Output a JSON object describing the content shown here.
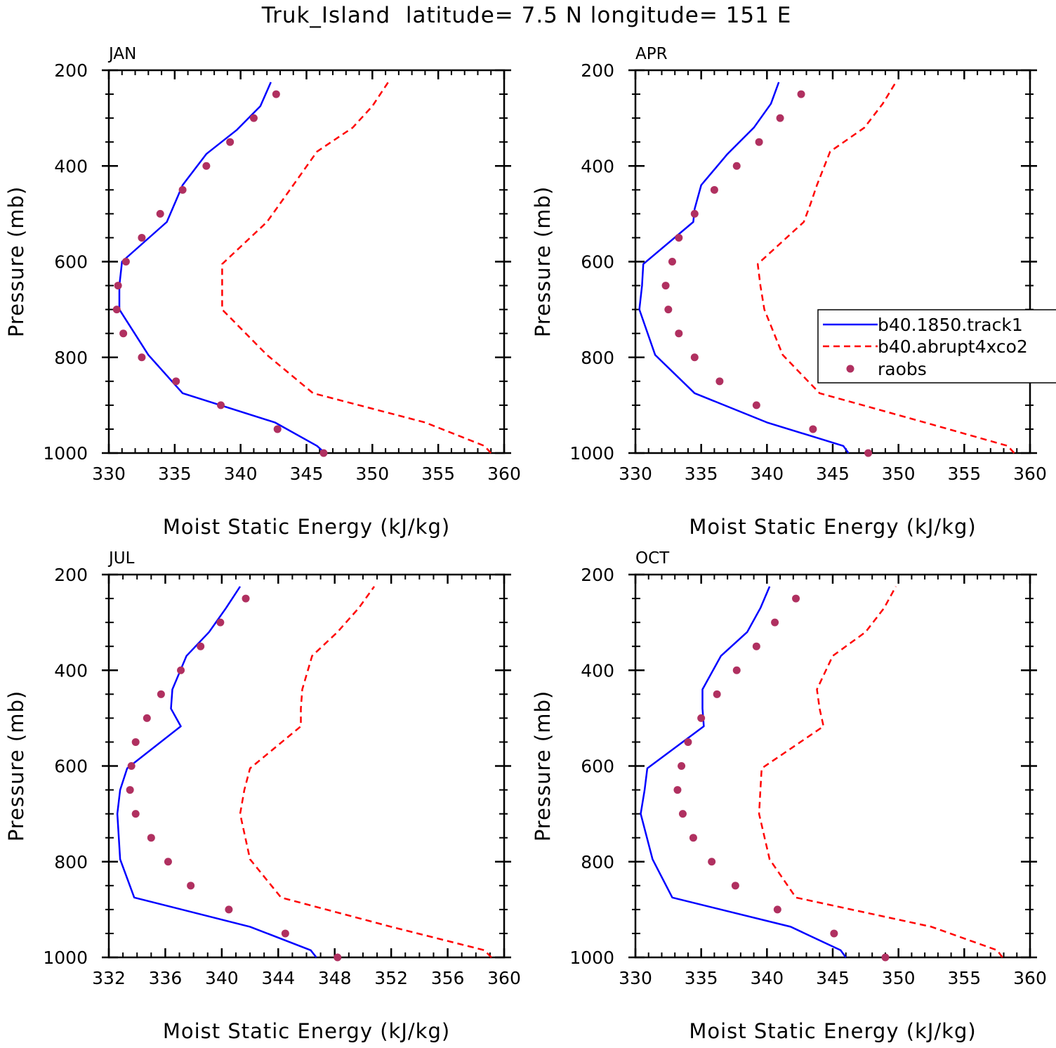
{
  "title": "Truk_Island  latitude= 7.5 N longitude= 151 E",
  "colors": {
    "model_1850": "#0000ff",
    "model_4xco2": "#ff0000",
    "raobs": "#b03060",
    "axis": "#000000"
  },
  "legend": {
    "items": [
      {
        "label": "b40.1850.track1",
        "style": "solid-line"
      },
      {
        "label": "b40.abrupt4xco2",
        "style": "dashed-line"
      },
      {
        "label": "raobs",
        "style": "dot"
      }
    ]
  },
  "chart_data": [
    {
      "type": "line",
      "title": "JAN",
      "xlabel": "Moist Static Energy (kJ/kg)",
      "ylabel": "Pressure (mb)",
      "xlim": [
        330,
        360
      ],
      "ylim": [
        1000,
        200
      ],
      "xticks": [
        330,
        335,
        340,
        345,
        350,
        355,
        360
      ],
      "yticks": [
        200,
        400,
        600,
        800,
        1000
      ],
      "series": [
        {
          "name": "b40.1850.track1",
          "style": "solid",
          "x": [
            346.4,
            345.8,
            342.6,
            335.6,
            333.0,
            330.8,
            330.8,
            331.0,
            334.4,
            335.6,
            337.4,
            339.7,
            341.5,
            342.3
          ],
          "y": [
            1000,
            985,
            936,
            875,
            795,
            700,
            650,
            600,
            517,
            440,
            375,
            325,
            275,
            225
          ]
        },
        {
          "name": "b40.abrupt4xco2",
          "style": "dashed",
          "x": [
            359.0,
            358.5,
            354.0,
            345.5,
            342.0,
            338.6,
            338.6,
            338.6,
            342.0,
            344.0,
            345.8,
            348.5,
            350.0,
            351.2
          ],
          "y": [
            1000,
            985,
            936,
            875,
            795,
            700,
            650,
            605,
            517,
            440,
            370,
            320,
            275,
            225
          ]
        },
        {
          "name": "raobs",
          "style": "dots",
          "x": [
            346.3,
            342.8,
            338.5,
            335.1,
            332.5,
            331.1,
            330.6,
            330.7,
            331.3,
            332.5,
            333.9,
            335.6,
            337.4,
            339.2,
            341.0,
            342.7
          ],
          "y": [
            1000,
            950,
            900,
            850,
            800,
            750,
            700,
            650,
            600,
            550,
            500,
            450,
            400,
            350,
            300,
            250
          ]
        }
      ]
    },
    {
      "type": "line",
      "title": "APR",
      "xlabel": "Moist Static Energy (kJ/kg)",
      "ylabel": "Pressure (mb)",
      "xlim": [
        330,
        360
      ],
      "ylim": [
        1000,
        200
      ],
      "xticks": [
        330,
        335,
        340,
        345,
        350,
        355,
        360
      ],
      "yticks": [
        200,
        400,
        600,
        800,
        1000
      ],
      "series": [
        {
          "name": "b40.1850.track1",
          "style": "solid",
          "x": [
            346.2,
            345.8,
            340.0,
            334.5,
            331.5,
            330.3,
            330.5,
            330.6,
            334.4,
            334.5,
            335.0,
            337.0,
            339.0,
            340.3,
            340.9
          ],
          "y": [
            1000,
            985,
            936,
            875,
            795,
            700,
            650,
            605,
            517,
            490,
            440,
            375,
            320,
            270,
            225
          ]
        },
        {
          "name": "b40.abrupt4xco2",
          "style": "dashed",
          "x": [
            358.8,
            358.3,
            352.0,
            344.0,
            341.2,
            339.8,
            339.5,
            339.3,
            342.8,
            343.3,
            343.8,
            344.8,
            347.4,
            348.8,
            349.8
          ],
          "y": [
            1000,
            985,
            936,
            875,
            795,
            700,
            650,
            605,
            517,
            480,
            440,
            370,
            320,
            270,
            225
          ]
        },
        {
          "name": "raobs",
          "style": "dots",
          "x": [
            347.7,
            343.5,
            339.2,
            336.4,
            334.5,
            333.3,
            332.5,
            332.3,
            332.8,
            333.3,
            334.5,
            336.0,
            337.7,
            339.4,
            341.0,
            342.6
          ],
          "y": [
            1000,
            950,
            900,
            850,
            800,
            750,
            700,
            650,
            600,
            550,
            500,
            450,
            400,
            350,
            300,
            250
          ]
        }
      ]
    },
    {
      "type": "line",
      "title": "JUL",
      "xlabel": "Moist Static Energy (kJ/kg)",
      "ylabel": "Pressure (mb)",
      "xlim": [
        332,
        360
      ],
      "ylim": [
        1000,
        200
      ],
      "xticks": [
        332,
        336,
        340,
        344,
        348,
        352,
        356,
        360
      ],
      "yticks": [
        200,
        400,
        600,
        800,
        1000
      ],
      "series": [
        {
          "name": "b40.1850.track1",
          "style": "solid",
          "x": [
            346.7,
            346.3,
            342.0,
            333.8,
            332.8,
            332.6,
            332.8,
            333.3,
            337.1,
            336.4,
            336.5,
            337.5,
            339.1,
            340.3,
            341.3
          ],
          "y": [
            1000,
            985,
            936,
            875,
            795,
            700,
            650,
            605,
            517,
            480,
            440,
            370,
            320,
            270,
            225
          ]
        },
        {
          "name": "b40.abrupt4xco2",
          "style": "dashed",
          "x": [
            359.1,
            358.6,
            352.0,
            344.2,
            342.0,
            341.3,
            341.6,
            342.0,
            345.6,
            345.6,
            345.7,
            346.4,
            348.2,
            349.7,
            350.8
          ],
          "y": [
            1000,
            985,
            936,
            875,
            795,
            700,
            650,
            605,
            517,
            480,
            440,
            370,
            320,
            270,
            225
          ]
        },
        {
          "name": "raobs",
          "style": "dots",
          "x": [
            348.2,
            344.5,
            340.5,
            337.8,
            336.2,
            335.0,
            333.9,
            333.5,
            333.6,
            333.9,
            334.7,
            335.7,
            337.1,
            338.5,
            339.9,
            341.7
          ],
          "y": [
            1000,
            950,
            900,
            850,
            800,
            750,
            700,
            650,
            600,
            550,
            500,
            450,
            400,
            350,
            300,
            250
          ]
        }
      ]
    },
    {
      "type": "line",
      "title": "OCT",
      "xlabel": "Moist Static Energy (kJ/kg)",
      "ylabel": "Pressure (mb)",
      "xlim": [
        330,
        360
      ],
      "ylim": [
        1000,
        200
      ],
      "xticks": [
        330,
        335,
        340,
        345,
        350,
        355,
        360
      ],
      "yticks": [
        200,
        400,
        600,
        800,
        1000
      ],
      "series": [
        {
          "name": "b40.1850.track1",
          "style": "solid",
          "x": [
            346.0,
            345.6,
            341.8,
            332.8,
            331.3,
            330.4,
            330.7,
            330.9,
            335.2,
            335.1,
            335.1,
            336.5,
            338.5,
            339.5,
            340.2
          ],
          "y": [
            1000,
            985,
            936,
            875,
            795,
            700,
            650,
            605,
            517,
            480,
            440,
            370,
            320,
            270,
            225
          ]
        },
        {
          "name": "b40.abrupt4xco2",
          "style": "dashed",
          "x": [
            357.9,
            357.5,
            352.5,
            342.2,
            340.2,
            339.4,
            339.5,
            339.6,
            344.3,
            344.0,
            343.8,
            345.0,
            347.5,
            348.9,
            349.8
          ],
          "y": [
            1000,
            985,
            936,
            875,
            795,
            700,
            650,
            605,
            517,
            480,
            440,
            370,
            320,
            270,
            225
          ]
        },
        {
          "name": "raobs",
          "style": "dots",
          "x": [
            349.0,
            345.1,
            340.8,
            337.6,
            335.8,
            334.4,
            333.6,
            333.2,
            333.5,
            334.0,
            335.0,
            336.2,
            337.7,
            339.2,
            340.6,
            342.2
          ],
          "y": [
            1000,
            950,
            900,
            850,
            800,
            750,
            700,
            650,
            600,
            550,
            500,
            450,
            400,
            350,
            300,
            250
          ]
        }
      ]
    }
  ]
}
